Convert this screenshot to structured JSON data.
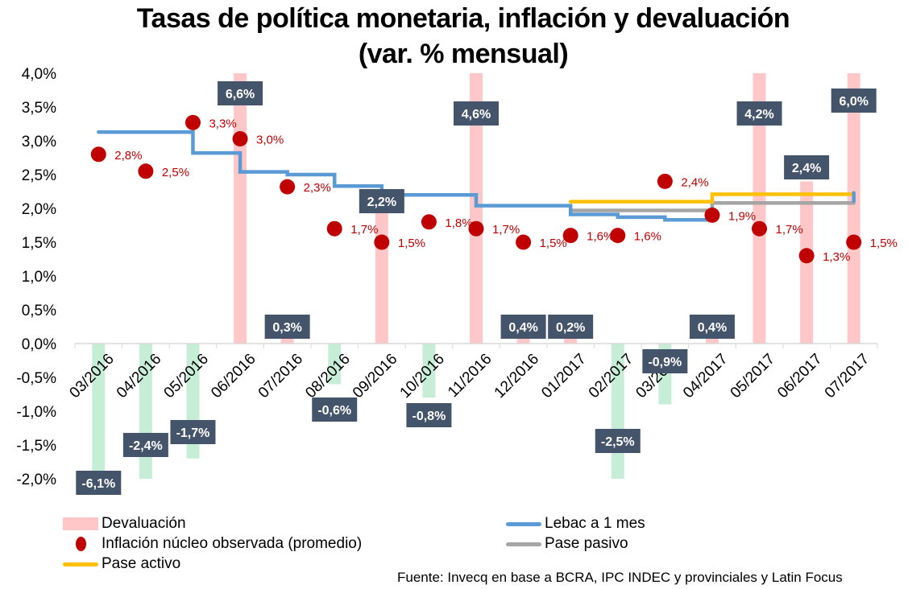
{
  "chart_data": {
    "type": "bar",
    "title": "Tasas de política monetaria, inflación y devaluación",
    "subtitle": "(var. % mensual)",
    "xlabel": "",
    "ylabel": "",
    "ylim": [
      -2.0,
      4.0
    ],
    "yticks": [
      4.0,
      3.5,
      3.0,
      2.5,
      2.0,
      1.5,
      1.0,
      0.5,
      0.0,
      -0.5,
      -1.0,
      -1.5,
      -2.0
    ],
    "ytick_labels": [
      "4,0%",
      "3,5%",
      "3,0%",
      "2,5%",
      "2,0%",
      "1,5%",
      "1,0%",
      "0,5%",
      "0,0%",
      "-0,5%",
      "-1,0%",
      "-1,5%",
      "-2,0%"
    ],
    "grid": false,
    "legend_position": "bottom",
    "categories": [
      "03/2016",
      "04/2016",
      "05/2016",
      "06/2016",
      "07/2016",
      "08/2016",
      "09/2016",
      "10/2016",
      "11/2016",
      "12/2016",
      "01/2017",
      "02/2017",
      "03/2017",
      "04/2017",
      "05/2017",
      "06/2017",
      "07/2017"
    ],
    "series": [
      {
        "name": "Devaluación",
        "kind": "bar",
        "color_positive": "#ffc7c7",
        "color_negative": "#c6eed7",
        "values": [
          -6.1,
          -2.4,
          -1.7,
          6.6,
          0.3,
          -0.6,
          2.2,
          -0.8,
          4.6,
          0.4,
          0.2,
          -2.5,
          -0.9,
          0.4,
          4.2,
          2.4,
          6.0
        ],
        "labels": [
          "-6,1%",
          "-2,4%",
          "-1,7%",
          "6,6%",
          "0,3%",
          "-0,6%",
          "2,2%",
          "-0,8%",
          "4,6%",
          "0,4%",
          "0,2%",
          "-2,5%",
          "-0,9%",
          "0,4%",
          "4,2%",
          "2,4%",
          "6,0%"
        ],
        "label_bg": "#44546a",
        "label_color": "#ffffff"
      },
      {
        "name": "Inflación núcleo observada (promedio)",
        "kind": "scatter",
        "color": "#c00000",
        "values": [
          2.8,
          2.55,
          3.27,
          3.03,
          2.32,
          1.7,
          1.5,
          1.8,
          1.7,
          1.5,
          1.6,
          1.6,
          2.4,
          1.9,
          1.7,
          1.3,
          1.5
        ],
        "labels": [
          "2,8%",
          "2,5%",
          "3,3%",
          "3,0%",
          "2,3%",
          "1,7%",
          "1,5%",
          "1,8%",
          "1,7%",
          "1,5%",
          "1,6%",
          "1,6%",
          "2,4%",
          "1,9%",
          "1,7%",
          "1,3%",
          "1,5%"
        ]
      },
      {
        "name": "Lebac a 1 mes",
        "kind": "step",
        "color": "#5b9bd5",
        "values": [
          3.13,
          3.13,
          2.82,
          2.54,
          2.5,
          2.33,
          2.2,
          2.2,
          2.04,
          2.04,
          1.91,
          1.87,
          1.83,
          2.0,
          null,
          null,
          2.17
        ]
      },
      {
        "name": "Pase pasivo",
        "kind": "step",
        "color": "#a5a5a5",
        "values": [
          null,
          null,
          null,
          null,
          null,
          null,
          null,
          null,
          null,
          null,
          1.97,
          1.97,
          1.97,
          2.08,
          2.08,
          2.08,
          2.08
        ]
      },
      {
        "name": "Pase activo",
        "kind": "step",
        "color": "#ffc000",
        "values": [
          null,
          null,
          null,
          null,
          null,
          null,
          null,
          null,
          null,
          null,
          2.1,
          2.1,
          2.1,
          2.21,
          2.21,
          2.21,
          2.21
        ]
      }
    ],
    "legend": [
      {
        "label": "Devaluación",
        "kind": "bar",
        "color": "#ffc7c7"
      },
      {
        "label": "Lebac a 1 mes",
        "kind": "line",
        "color": "#5b9bd5"
      },
      {
        "label": "Inflación núcleo observada (promedio)",
        "kind": "dot",
        "color": "#c00000"
      },
      {
        "label": "Pase pasivo",
        "kind": "line",
        "color": "#a5a5a5"
      },
      {
        "label": "Pase activo",
        "kind": "line",
        "color": "#ffc000"
      }
    ],
    "source": "Fuente: Invecq en base a BCRA, IPC INDEC y provinciales y Latin Focus"
  }
}
